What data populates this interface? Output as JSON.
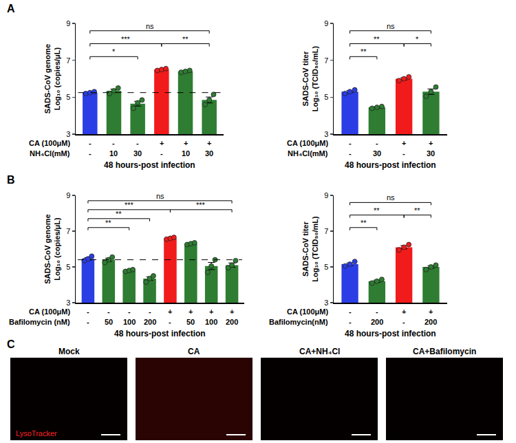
{
  "panel_labels": [
    "A",
    "B",
    "C"
  ],
  "chart_data": [
    {
      "type": "bar",
      "ylabel": [
        "SADS-CoV genome",
        "Log₁₀ (copies/μL)"
      ],
      "categories": [
        null,
        null,
        null,
        null,
        null,
        null
      ],
      "values": [
        5.25,
        5.35,
        4.65,
        6.5,
        6.4,
        4.85
      ],
      "errors": [
        0.03,
        0.09,
        0.13,
        0.03,
        0.03,
        0.16
      ],
      "points": [
        [
          5.2,
          5.25,
          5.3
        ],
        [
          5.2,
          5.35,
          5.5
        ],
        [
          4.4,
          4.7,
          4.85
        ],
        [
          6.45,
          6.5,
          6.55
        ],
        [
          6.35,
          6.4,
          6.45
        ],
        [
          4.6,
          4.85,
          5.15
        ]
      ],
      "colors": [
        "#2b3ee6",
        "#2e7d32",
        "#2e7d32",
        "#f21b1b",
        "#2e7d32",
        "#2e7d32"
      ],
      "ylim": [
        3,
        9
      ],
      "yticks": [
        3,
        5,
        7,
        9
      ],
      "grid": false,
      "tick_labels": "y",
      "reference_line": 5.25,
      "treatments": [
        {
          "label": "CA (100μM)",
          "values": [
            "-",
            "-",
            "-",
            "+",
            "+",
            "+"
          ]
        },
        {
          "label": "NH₄Cl(mM)",
          "values": [
            "-",
            "10",
            "30",
            "-",
            "10",
            "30"
          ]
        }
      ],
      "xlabel": "48 hours-post infection",
      "significance": [
        {
          "from": 0,
          "to": 5,
          "y": 8.6,
          "label": "ns"
        },
        {
          "from": 0,
          "to": 3,
          "y": 7.9,
          "label": "***"
        },
        {
          "from": 0,
          "to": 2,
          "y": 7.2,
          "label": "*"
        },
        {
          "from": 3,
          "to": 5,
          "y": 7.9,
          "label": "**"
        }
      ]
    },
    {
      "type": "bar",
      "ylabel": [
        "SADS-CoV titer",
        "Log₁₀ (TCID₅₀/mL)"
      ],
      "categories": [
        null,
        null,
        null,
        null
      ],
      "values": [
        5.3,
        4.45,
        6.0,
        5.3
      ],
      "errors": [
        0.06,
        0.03,
        0.06,
        0.15
      ],
      "points": [
        [
          5.2,
          5.3,
          5.4
        ],
        [
          4.4,
          4.45,
          4.5
        ],
        [
          5.9,
          6.0,
          6.1
        ],
        [
          5.05,
          5.3,
          5.55
        ]
      ],
      "colors": [
        "#2b3ee6",
        "#2e7d32",
        "#f21b1b",
        "#2e7d32"
      ],
      "ylim": [
        3,
        9
      ],
      "yticks": [
        3,
        5,
        7,
        9
      ],
      "grid": false,
      "tick_labels": "y",
      "treatments": [
        {
          "label": "CA (100μM)",
          "values": [
            "-",
            "-",
            "+",
            "+"
          ]
        },
        {
          "label": "NH₄Cl(mM)",
          "values": [
            "-",
            "30",
            "-",
            "30"
          ]
        }
      ],
      "xlabel": "48 hours-post infection",
      "significance": [
        {
          "from": 0,
          "to": 3,
          "y": 8.6,
          "label": "ns"
        },
        {
          "from": 0,
          "to": 2,
          "y": 7.9,
          "label": "**"
        },
        {
          "from": 0,
          "to": 1,
          "y": 7.2,
          "label": "**"
        },
        {
          "from": 2,
          "to": 3,
          "y": 7.9,
          "label": "*"
        }
      ]
    },
    {
      "type": "bar",
      "ylabel": [
        "SADS-CoV genome",
        "Log₁₀ (copies/μL)"
      ],
      "categories": [
        null,
        null,
        null,
        null,
        null,
        null,
        null,
        null
      ],
      "values": [
        5.45,
        5.4,
        4.8,
        4.35,
        6.6,
        6.3,
        5.05,
        5.1
      ],
      "errors": [
        0.07,
        0.09,
        0.03,
        0.1,
        0.03,
        0.03,
        0.2,
        0.12
      ],
      "points": [
        [
          5.35,
          5.45,
          5.6
        ],
        [
          5.25,
          5.4,
          5.55
        ],
        [
          4.75,
          4.8,
          4.85
        ],
        [
          4.15,
          4.35,
          4.5
        ],
        [
          6.55,
          6.6,
          6.65
        ],
        [
          6.25,
          6.3,
          6.35
        ],
        [
          4.7,
          5.05,
          5.4
        ],
        [
          4.95,
          5.1,
          5.35
        ]
      ],
      "colors": [
        "#2b3ee6",
        "#2e7d32",
        "#2e7d32",
        "#2e7d32",
        "#f21b1b",
        "#2e7d32",
        "#2e7d32",
        "#2e7d32"
      ],
      "ylim": [
        3,
        9
      ],
      "yticks": [
        3,
        5,
        7,
        9
      ],
      "grid": false,
      "tick_labels": "y",
      "reference_line": 5.4,
      "treatments": [
        {
          "label": "CA (100μM)",
          "values": [
            "-",
            "-",
            "-",
            "-",
            "+",
            "+",
            "+",
            "+"
          ]
        },
        {
          "label": "Bafilomycin (nM)",
          "values": [
            "-",
            "50",
            "100",
            "200",
            "-",
            "50",
            "100",
            "200"
          ]
        }
      ],
      "xlabel": "48 hours-post infection",
      "significance": [
        {
          "from": 0,
          "to": 7,
          "y": 8.7,
          "label": "ns"
        },
        {
          "from": 0,
          "to": 4,
          "y": 8.2,
          "label": "***"
        },
        {
          "from": 0,
          "to": 3,
          "y": 7.7,
          "label": "**"
        },
        {
          "from": 0,
          "to": 2,
          "y": 7.2,
          "label": "**"
        },
        {
          "from": 4,
          "to": 7,
          "y": 8.2,
          "label": "***"
        }
      ]
    },
    {
      "type": "bar",
      "ylabel": [
        "SADS-CoV titer",
        "Log₁₀ (TCID₅₀/mL)"
      ],
      "categories": [
        null,
        null,
        null,
        null
      ],
      "values": [
        5.15,
        4.2,
        6.1,
        5.0
      ],
      "errors": [
        0.07,
        0.06,
        0.09,
        0.07
      ],
      "points": [
        [
          5.05,
          5.15,
          5.3
        ],
        [
          4.1,
          4.2,
          4.3
        ],
        [
          5.95,
          6.1,
          6.25
        ],
        [
          4.85,
          5.0,
          5.1
        ]
      ],
      "colors": [
        "#2b3ee6",
        "#2e7d32",
        "#f21b1b",
        "#2e7d32"
      ],
      "ylim": [
        3,
        9
      ],
      "yticks": [
        3,
        5,
        7,
        9
      ],
      "grid": false,
      "tick_labels": "y",
      "treatments": [
        {
          "label": "CA (100μM)",
          "values": [
            "-",
            "-",
            "+",
            "+"
          ]
        },
        {
          "label": "Bafilomycin(nM)",
          "values": [
            "-",
            "200",
            "-",
            "200"
          ]
        }
      ],
      "xlabel": "48 hours-post infection",
      "significance": [
        {
          "from": 0,
          "to": 3,
          "y": 8.6,
          "label": "ns"
        },
        {
          "from": 0,
          "to": 2,
          "y": 7.9,
          "label": "**"
        },
        {
          "from": 0,
          "to": 1,
          "y": 7.2,
          "label": "**"
        },
        {
          "from": 2,
          "to": 3,
          "y": 7.9,
          "label": "**"
        }
      ]
    }
  ],
  "image_panel": {
    "titles": [
      "Mock",
      "CA",
      "CA+NH₄Cl",
      "CA+Bafilomycin"
    ],
    "stain": "LysoTracker"
  }
}
